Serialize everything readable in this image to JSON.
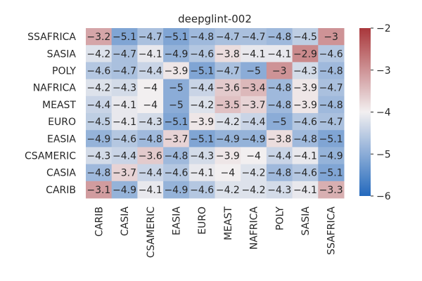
{
  "chart_data": {
    "type": "heatmap",
    "title": "deepglint-002",
    "rows": [
      "SSAFRICA",
      "SASIA",
      "POLY",
      "NAFRICA",
      "MEAST",
      "EURO",
      "EASIA",
      "CSAMERIC",
      "CASIA",
      "CARIB"
    ],
    "columns": [
      "CARIB",
      "CASIA",
      "CSAMERIC",
      "EASIA",
      "EURO",
      "MEAST",
      "NAFRICA",
      "POLY",
      "SASIA",
      "SSAFRICA"
    ],
    "values": [
      [
        -3.2,
        -5.1,
        -4.7,
        -5.1,
        -4.8,
        -4.7,
        -4.7,
        -4.8,
        -4.5,
        -3
      ],
      [
        -4.2,
        -4.7,
        -4.1,
        -4.9,
        -4.6,
        -3.8,
        -4.1,
        -4.1,
        -2.9,
        -4.6
      ],
      [
        -4.6,
        -4.7,
        -4.4,
        -3.9,
        -5.1,
        -4.7,
        -5,
        -3,
        -4.3,
        -4.8
      ],
      [
        -4.2,
        -4.3,
        -4,
        -5,
        -4.4,
        -3.6,
        -3.4,
        -4.8,
        -3.9,
        -4.7
      ],
      [
        -4.4,
        -4.1,
        -4,
        -5,
        -4.2,
        -3.5,
        -3.7,
        -4.8,
        -3.9,
        -4.8
      ],
      [
        -4.5,
        -4.1,
        -4.3,
        -5.1,
        -3.9,
        -4.2,
        -4.4,
        -5,
        -4.6,
        -4.7
      ],
      [
        -4.9,
        -4.6,
        -4.8,
        -3.7,
        -5.1,
        -4.9,
        -4.9,
        -3.8,
        -4.8,
        -5.1
      ],
      [
        -4.3,
        -4.4,
        -3.6,
        -4.8,
        -4.3,
        -3.9,
        -4,
        -4.4,
        -4.1,
        -4.9
      ],
      [
        -4.8,
        -3.7,
        -4.4,
        -4.6,
        -4.1,
        -4,
        -4.2,
        -4.8,
        -4.6,
        -5.1
      ],
      [
        -3.1,
        -4.9,
        -4.1,
        -4.9,
        -4.6,
        -4.2,
        -4.2,
        -4.3,
        -4.1,
        -3.3
      ]
    ],
    "colorbar": {
      "range": [
        -6,
        -2
      ],
      "ticks": [
        -2,
        -3,
        -4,
        -5,
        -6
      ],
      "colormap": "vlag",
      "colors": {
        "low": "#2369bd",
        "mid": "#f2eff0",
        "high": "#a9373b"
      }
    },
    "grid": false
  }
}
